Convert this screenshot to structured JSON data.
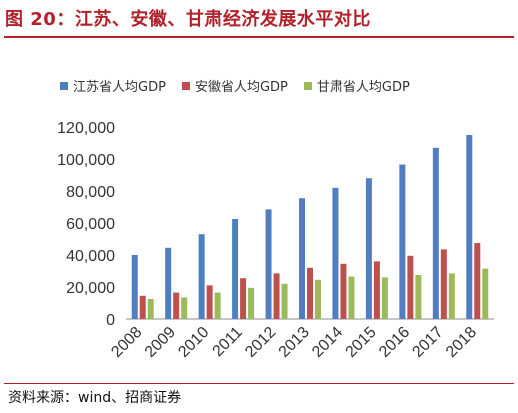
{
  "title": "图 20：江苏、安徽、甘肃经济发展水平对比",
  "source": "资料来源：wind、招商证券",
  "colors": {
    "title": "#b1212a",
    "rule": "#b1212a"
  },
  "chart_data": {
    "type": "bar",
    "categories": [
      "2008",
      "2009",
      "2010",
      "2011",
      "2012",
      "2013",
      "2014",
      "2015",
      "2016",
      "2017",
      "2018"
    ],
    "series": [
      {
        "name": "江苏省人均GDP",
        "color": "#4f7ec2",
        "values": [
          40000,
          44500,
          53000,
          62500,
          68500,
          75500,
          82000,
          88000,
          96500,
          107000,
          115000
        ]
      },
      {
        "name": "安徽省人均GDP",
        "color": "#c0504d",
        "values": [
          14500,
          16500,
          21000,
          25500,
          28500,
          32000,
          34500,
          36000,
          39500,
          43500,
          47500
        ]
      },
      {
        "name": "甘肃省人均GDP",
        "color": "#9bbb59",
        "values": [
          12500,
          13500,
          16500,
          19500,
          22000,
          24500,
          26500,
          26000,
          27500,
          28500,
          31500
        ]
      }
    ],
    "yticks": [
      "0",
      "20,000",
      "40,000",
      "60,000",
      "80,000",
      "100,000",
      "120,000"
    ],
    "ylim": [
      0,
      120000
    ],
    "grid": false,
    "legend_position": "top"
  }
}
